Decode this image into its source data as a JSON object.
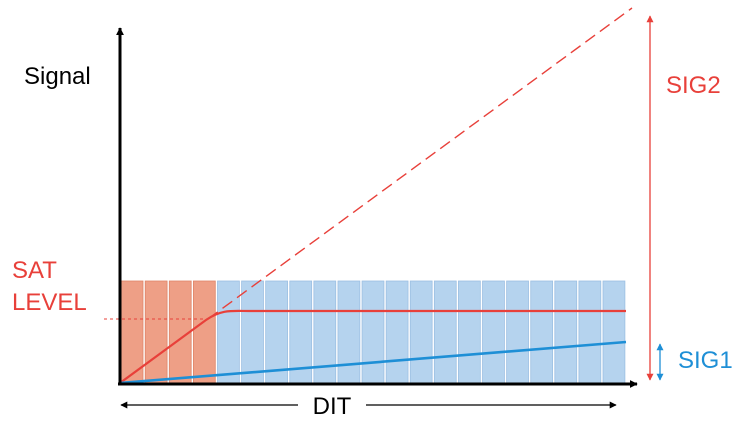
{
  "diagram": {
    "labels": {
      "y_axis": "Signal",
      "x_axis": "DIT",
      "sat_level_line1": "SAT",
      "sat_level_line2": "LEVEL",
      "sig2": "SIG2",
      "sig1": "SIG1"
    },
    "bars": {
      "count": 21,
      "saturated_count": 4
    },
    "colors": {
      "axis": "#000000",
      "red": "#e8403a",
      "blue": "#1e8fd6",
      "bar_blue": "#b5d3ee",
      "bar_blue_edge": "#9cbfe2",
      "bar_salmon": "#ee9f86",
      "bar_salmon_edge": "#de8468"
    }
  }
}
